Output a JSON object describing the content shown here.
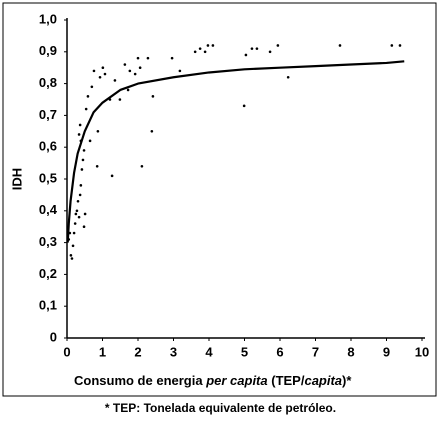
{
  "chart_data": {
    "type": "scatter",
    "y_label": "IDH",
    "x_label": [
      {
        "text": "Consumo de energia ",
        "italic": false
      },
      {
        "text": "per capita",
        "italic": true
      },
      {
        "text": " (TEP/",
        "italic": false
      },
      {
        "text": "capita",
        "italic": true
      },
      {
        "text": ")*",
        "italic": false
      }
    ],
    "note": "* TEP: Tonelada equivalente de petróleo.",
    "xlim": [
      0,
      10
    ],
    "ylim": [
      0,
      1
    ],
    "xticks": [
      0,
      1,
      2,
      3,
      4,
      5,
      6,
      7,
      8,
      9,
      10
    ],
    "yticks": [
      0,
      {
        "value": 0.1,
        "label": "0,1"
      },
      {
        "value": 0.2,
        "label": "0,2"
      },
      {
        "value": 0.3,
        "label": "0,3"
      },
      {
        "value": 0.4,
        "label": "0,4"
      },
      {
        "value": 0.5,
        "label": "0,5"
      },
      {
        "value": 0.6,
        "label": "0,6"
      },
      {
        "value": 0.7,
        "label": "0,7"
      },
      {
        "value": 0.8,
        "label": "0,8"
      },
      {
        "value": 0.9,
        "label": "0,9"
      },
      {
        "value": 1.0,
        "label": "1,0"
      }
    ],
    "series": [
      {
        "type": "scatter",
        "color": "#000000",
        "x": [
          0.11,
          0.14,
          0.17,
          0.2,
          0.23,
          0.25,
          0.28,
          0.31,
          0.34,
          0.37,
          0.39,
          0.42,
          0.45,
          0.34,
          0.37,
          0.39,
          0.48,
          0.48,
          0.51,
          0.54,
          0.59,
          0.65,
          0.7,
          0.76,
          0.85,
          0.87,
          0.93,
          1.01,
          1.07,
          1.21,
          1.27,
          1.35,
          1.49,
          1.63,
          1.72,
          1.77,
          1.92,
          2.0,
          2.06,
          2.11,
          2.28,
          2.39,
          2.42,
          2.96,
          3.18,
          3.61,
          3.75,
          3.89,
          3.97,
          4.11,
          4.99,
          5.04,
          5.21,
          5.35,
          5.72,
          5.94,
          6.23,
          7.69,
          9.15,
          9.38,
          0.05,
          0.08
        ],
        "values": [
          0.26,
          0.25,
          0.29,
          0.33,
          0.36,
          0.39,
          0.4,
          0.43,
          0.38,
          0.45,
          0.48,
          0.53,
          0.56,
          0.64,
          0.67,
          0.62,
          0.59,
          0.35,
          0.39,
          0.72,
          0.76,
          0.62,
          0.79,
          0.84,
          0.54,
          0.65,
          0.82,
          0.85,
          0.83,
          0.75,
          0.51,
          0.81,
          0.75,
          0.86,
          0.78,
          0.84,
          0.83,
          0.88,
          0.85,
          0.54,
          0.88,
          0.65,
          0.76,
          0.88,
          0.84,
          0.9,
          0.91,
          0.9,
          0.92,
          0.92,
          0.73,
          0.89,
          0.91,
          0.91,
          0.9,
          0.92,
          0.82,
          0.92,
          0.92,
          0.92,
          0.31,
          0.33
        ]
      },
      {
        "type": "line",
        "color": "#000000",
        "x": [
          0.02,
          0.05,
          0.1,
          0.2,
          0.3,
          0.5,
          0.75,
          1,
          1.5,
          2,
          3,
          4,
          5,
          6,
          7,
          8,
          9,
          9.5
        ],
        "values": [
          0.3,
          0.36,
          0.43,
          0.52,
          0.58,
          0.65,
          0.71,
          0.74,
          0.78,
          0.8,
          0.82,
          0.835,
          0.845,
          0.85,
          0.855,
          0.86,
          0.865,
          0.87
        ]
      }
    ]
  }
}
